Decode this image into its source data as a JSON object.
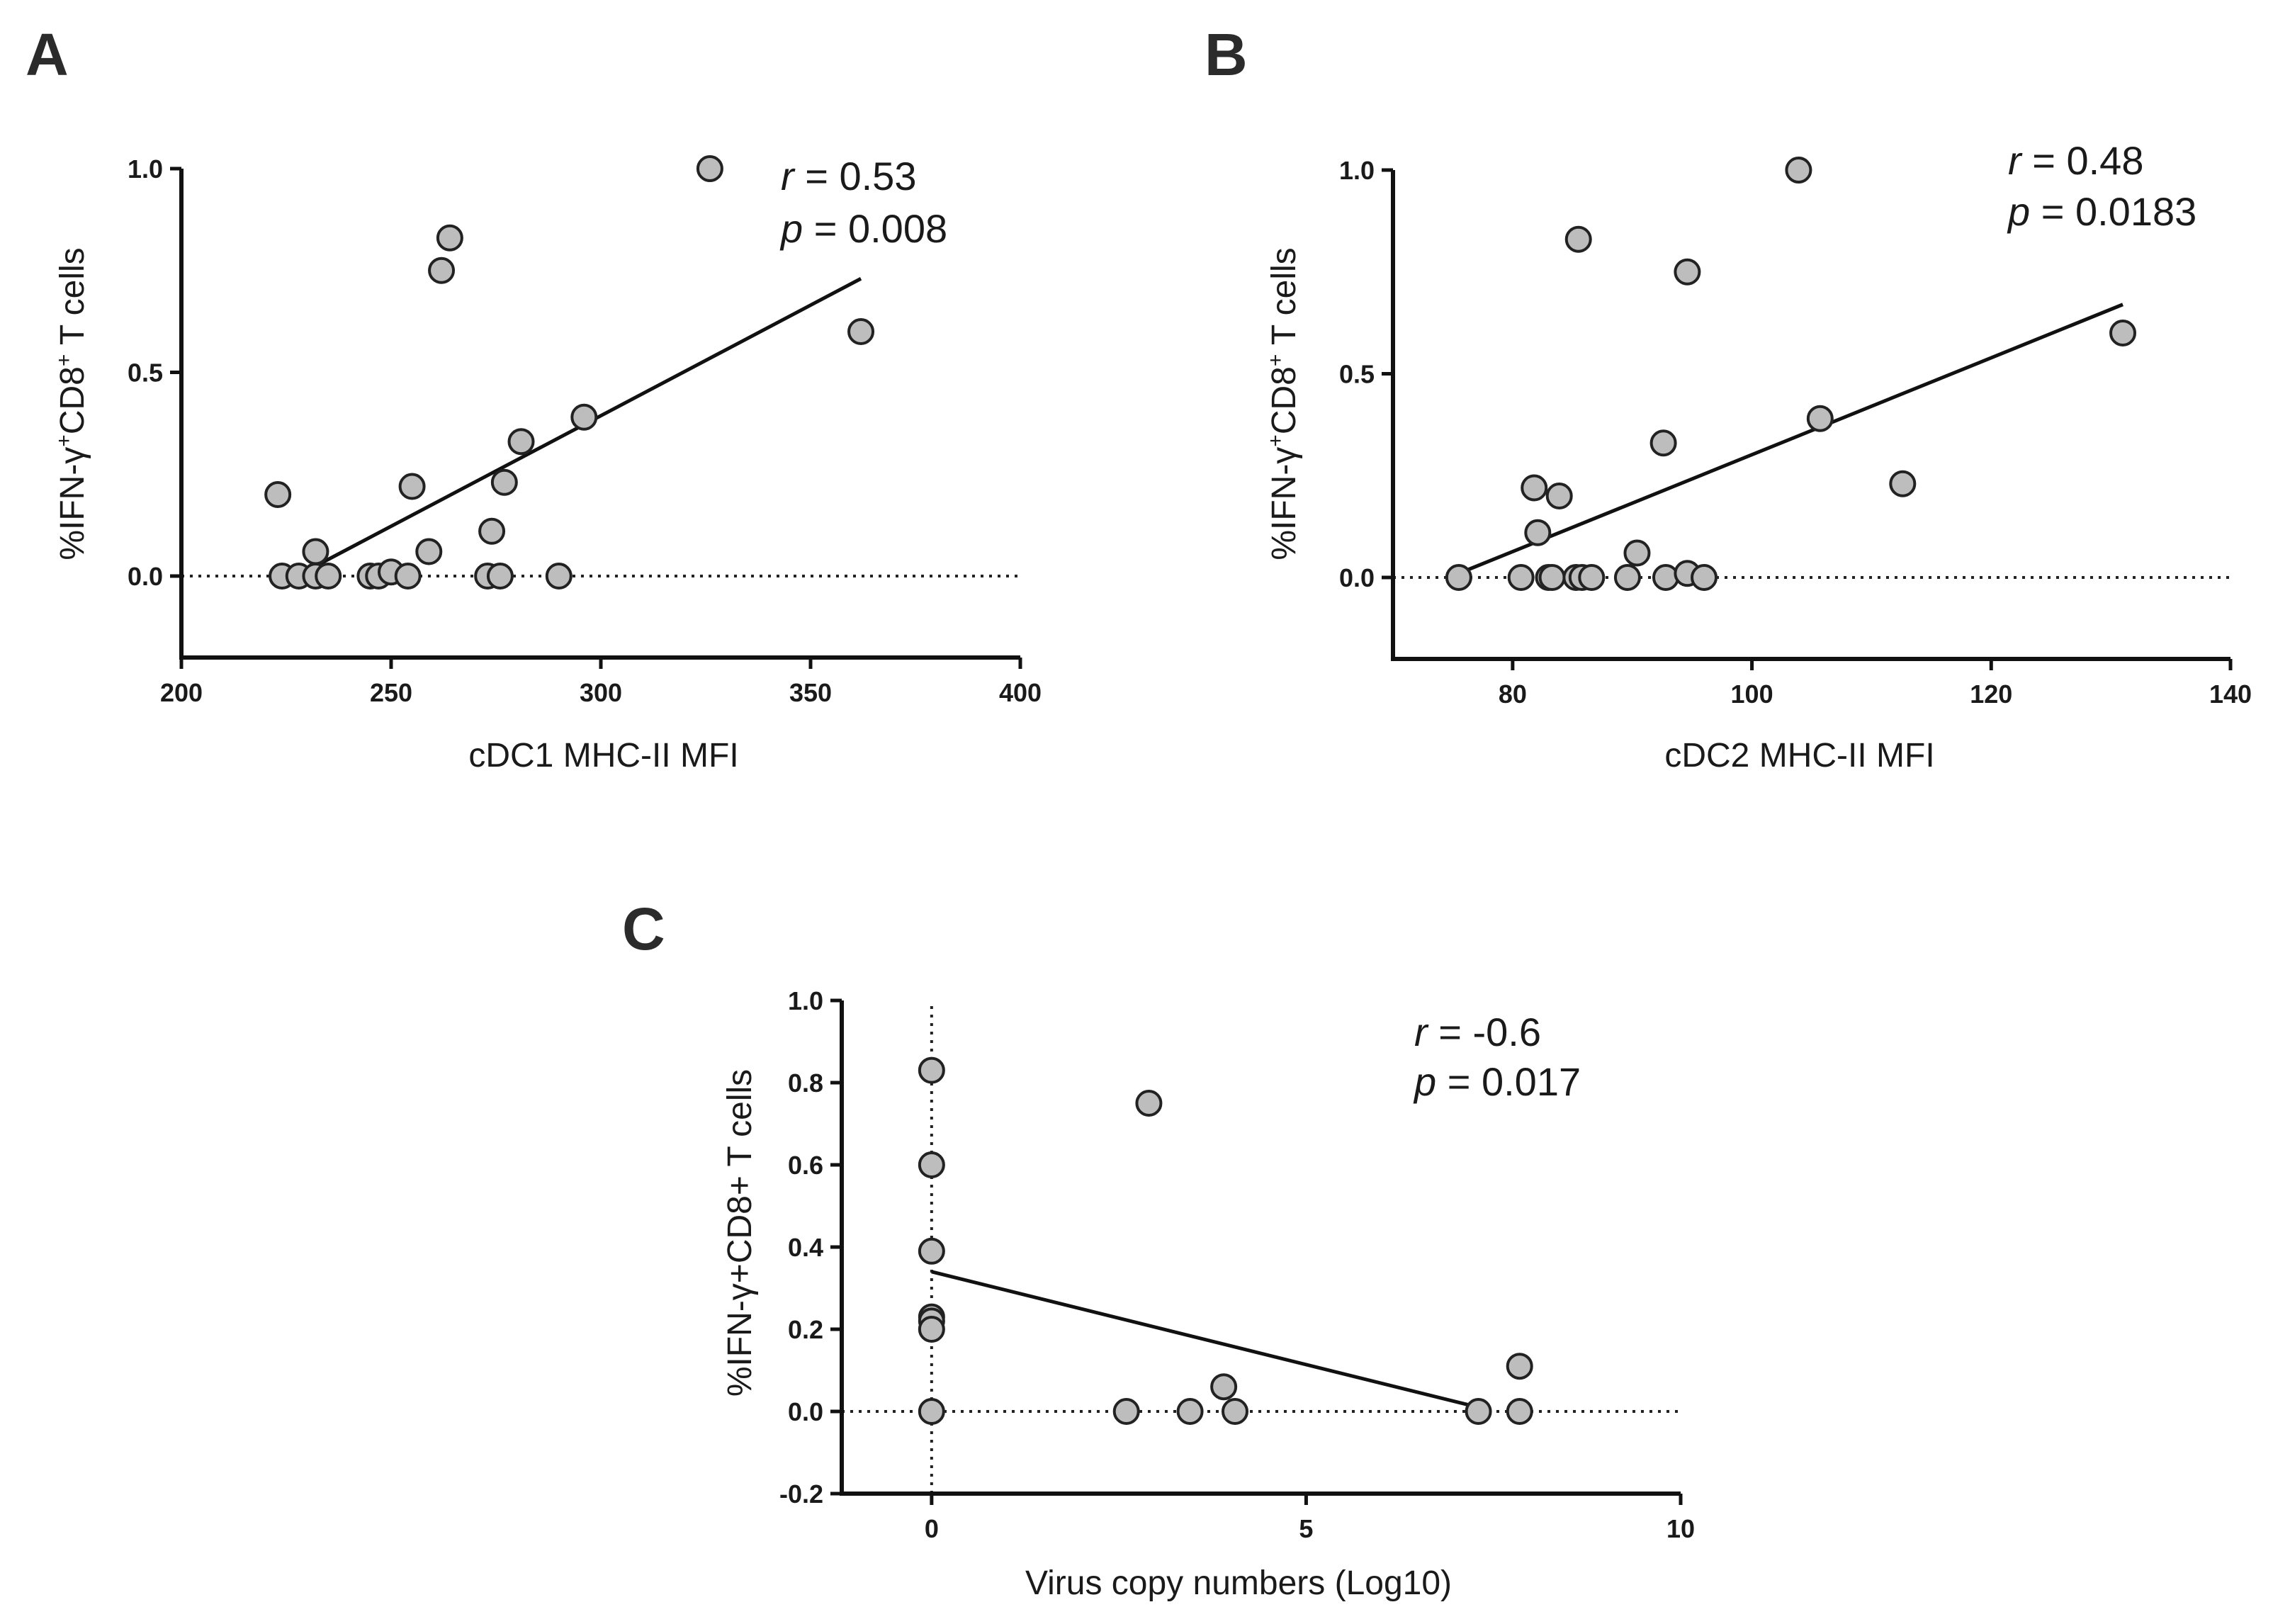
{
  "chart_data": [
    {
      "panel": "A",
      "type": "scatter",
      "xlabel": "cDC1 MHC-II MFI",
      "ylabel": "%IFN-γ+CD8+ T cells",
      "xlim": [
        200,
        400
      ],
      "ylim": [
        -0.2,
        1.0
      ],
      "xticks": [
        200,
        250,
        300,
        350,
        400
      ],
      "xtick_labels": [
        "200",
        "250",
        "300",
        "350",
        "400"
      ],
      "yticks": [
        0.0,
        0.5,
        1.0
      ],
      "ytick_labels": [
        "0.0",
        "0.5",
        "1.0"
      ],
      "stats": {
        "r_symbol": "r",
        "r_value": " = 0.53",
        "p_symbol": "p",
        "p_value": " = 0.008"
      },
      "fit": {
        "x": [
          233,
          362
        ],
        "y": [
          0.03,
          0.73
        ]
      },
      "zero_line": true,
      "vertical_zero_line": false,
      "points": [
        {
          "x": 223,
          "y": 0.2
        },
        {
          "x": 224,
          "y": 0.0
        },
        {
          "x": 228,
          "y": 0.0
        },
        {
          "x": 232,
          "y": 0.06
        },
        {
          "x": 232,
          "y": 0.0
        },
        {
          "x": 235,
          "y": 0.0
        },
        {
          "x": 245,
          "y": 0.0
        },
        {
          "x": 247,
          "y": 0.0
        },
        {
          "x": 250,
          "y": 0.01
        },
        {
          "x": 254,
          "y": 0.0
        },
        {
          "x": 255,
          "y": 0.22
        },
        {
          "x": 259,
          "y": 0.06
        },
        {
          "x": 262,
          "y": 0.75
        },
        {
          "x": 264,
          "y": 0.83
        },
        {
          "x": 273,
          "y": 0.0
        },
        {
          "x": 274,
          "y": 0.11
        },
        {
          "x": 276,
          "y": 0.0
        },
        {
          "x": 277,
          "y": 0.23
        },
        {
          "x": 281,
          "y": 0.33
        },
        {
          "x": 290,
          "y": 0.0
        },
        {
          "x": 296,
          "y": 0.39
        },
        {
          "x": 326,
          "y": 1.0
        },
        {
          "x": 362,
          "y": 0.6
        }
      ]
    },
    {
      "panel": "B",
      "type": "scatter",
      "xlabel": "cDC2 MHC-II MFI",
      "ylabel": "%IFN-γ+CD8+ T cells",
      "xlim": [
        70,
        140
      ],
      "ylim": [
        -0.2,
        1.0
      ],
      "xticks": [
        80,
        100,
        120,
        140
      ],
      "xtick_labels": [
        "80",
        "100",
        "120",
        "140"
      ],
      "yticks": [
        0.0,
        0.5,
        1.0
      ],
      "ytick_labels": [
        "0.0",
        "0.5",
        "1.0"
      ],
      "stats": {
        "r_symbol": "r",
        "r_value": " = 0.48",
        "p_symbol": "p",
        "p_value": " = 0.0183"
      },
      "fit": {
        "x": [
          75.5,
          131
        ],
        "y": [
          0.01,
          0.67
        ]
      },
      "zero_line": true,
      "vertical_zero_line": false,
      "points": [
        {
          "x": 75.5,
          "y": 0.0
        },
        {
          "x": 80.7,
          "y": 0.0
        },
        {
          "x": 81.8,
          "y": 0.22
        },
        {
          "x": 82.1,
          "y": 0.11
        },
        {
          "x": 83.0,
          "y": 0.0
        },
        {
          "x": 83.3,
          "y": 0.0
        },
        {
          "x": 83.9,
          "y": 0.2
        },
        {
          "x": 85.3,
          "y": 0.0
        },
        {
          "x": 85.5,
          "y": 0.83
        },
        {
          "x": 85.8,
          "y": 0.0
        },
        {
          "x": 86.6,
          "y": 0.0
        },
        {
          "x": 89.6,
          "y": 0.0
        },
        {
          "x": 90.4,
          "y": 0.06
        },
        {
          "x": 92.6,
          "y": 0.33
        },
        {
          "x": 92.8,
          "y": 0.0
        },
        {
          "x": 94.6,
          "y": 0.01
        },
        {
          "x": 94.6,
          "y": 0.75
        },
        {
          "x": 96.0,
          "y": 0.0
        },
        {
          "x": 103.9,
          "y": 1.0
        },
        {
          "x": 105.7,
          "y": 0.39
        },
        {
          "x": 112.6,
          "y": 0.23
        },
        {
          "x": 131.0,
          "y": 0.6
        }
      ]
    },
    {
      "panel": "C",
      "type": "scatter",
      "xlabel": "Virus copy numbers (Log10)",
      "ylabel": "%IFN-γ+CD8+ T cells",
      "xlim": [
        -1.2,
        10
      ],
      "ylim": [
        -0.2,
        1.0
      ],
      "xticks": [
        0,
        5,
        10
      ],
      "xtick_labels": [
        "0",
        "5",
        "10"
      ],
      "yticks": [
        -0.2,
        0.0,
        0.2,
        0.4,
        0.6,
        0.8,
        1.0
      ],
      "ytick_labels": [
        "-0.2",
        "0.0",
        "0.2",
        "0.4",
        "0.6",
        "0.8",
        "1.0"
      ],
      "stats": {
        "r_symbol": "r",
        "r_value": " = -0.6",
        "p_symbol": "p",
        "p_value": " = 0.017"
      },
      "fit": {
        "x": [
          0,
          7.3
        ],
        "y": [
          0.34,
          0.01
        ]
      },
      "zero_line": true,
      "vertical_zero_line": true,
      "points": [
        {
          "x": 0,
          "y": 0.83
        },
        {
          "x": 0,
          "y": 0.6
        },
        {
          "x": 0,
          "y": 0.39
        },
        {
          "x": 0,
          "y": 0.23
        },
        {
          "x": 0,
          "y": 0.22
        },
        {
          "x": 0,
          "y": 0.2
        },
        {
          "x": 0,
          "y": 0.0
        },
        {
          "x": 2.6,
          "y": 0.0
        },
        {
          "x": 2.9,
          "y": 0.75
        },
        {
          "x": 3.45,
          "y": 0.0
        },
        {
          "x": 3.9,
          "y": 0.06
        },
        {
          "x": 4.05,
          "y": 0.0
        },
        {
          "x": 7.3,
          "y": 0.0
        },
        {
          "x": 7.85,
          "y": 0.11
        },
        {
          "x": 7.85,
          "y": 0.0
        }
      ]
    }
  ],
  "style": {
    "point_fill": "#bdbdbd",
    "point_stroke": "#222222",
    "axis_color": "#111111"
  }
}
